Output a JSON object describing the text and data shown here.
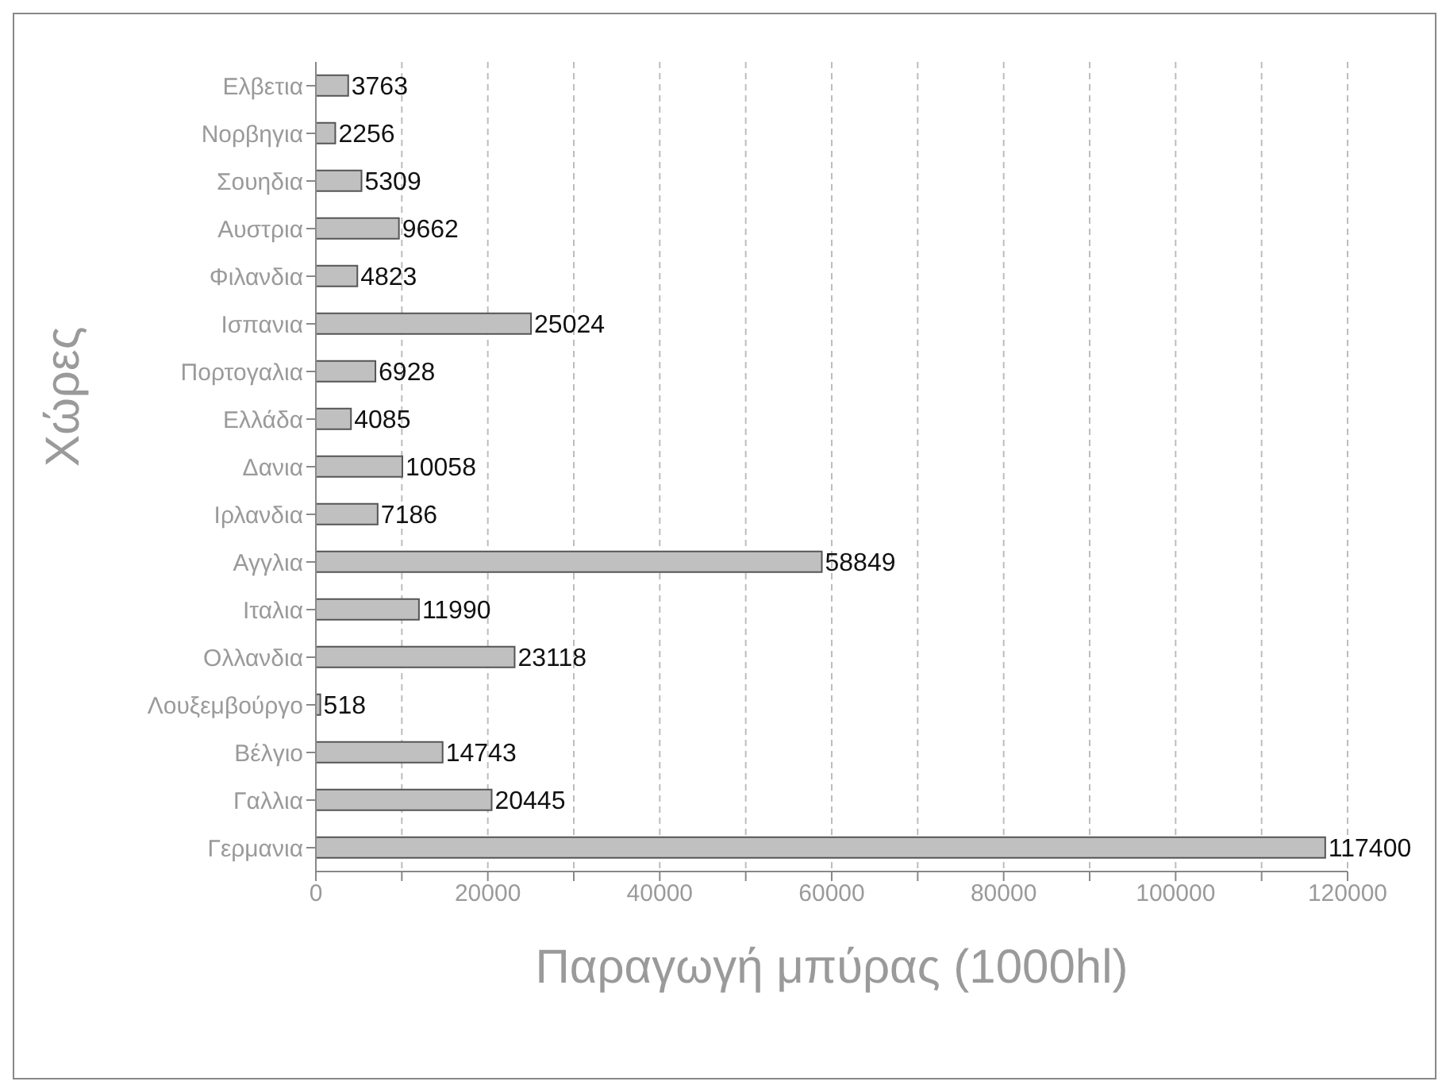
{
  "chart_data": {
    "type": "bar",
    "orientation": "horizontal",
    "xlabel": "Παραγωγή μπύρας (1000hl)",
    "ylabel": "Χώρες",
    "categories": [
      "Ελβετια",
      "Νορβηγια",
      "Σουηδια",
      "Αυστρια",
      "Φιλανδια",
      "Ισπανια",
      "Πορτογαλια",
      "Ελλάδα",
      "Δανια",
      "Ιρλανδια",
      "Αγγλια",
      "Ιταλια",
      "Ολλανδια",
      "Λουξεμβούργο",
      "Βέλγιο",
      "Γαλλια",
      "Γερμανια"
    ],
    "values": [
      3763,
      2256,
      5309,
      9662,
      4823,
      25024,
      6928,
      4085,
      10058,
      7186,
      58849,
      11990,
      23118,
      518,
      14743,
      20445,
      117400
    ],
    "color": "#c0c0c0",
    "xlim": [
      0,
      120000
    ],
    "xticks": [
      0,
      {
        "value": 10000,
        "label": null
      },
      20000,
      {
        "value": 30000,
        "label": null
      },
      40000,
      {
        "value": 50000,
        "label": null
      },
      60000,
      {
        "value": 70000,
        "label": null
      },
      80000,
      {
        "value": 90000,
        "label": null
      },
      100000,
      {
        "value": 110000,
        "label": null
      },
      120000
    ],
    "grid": "x",
    "data_labels": true
  }
}
